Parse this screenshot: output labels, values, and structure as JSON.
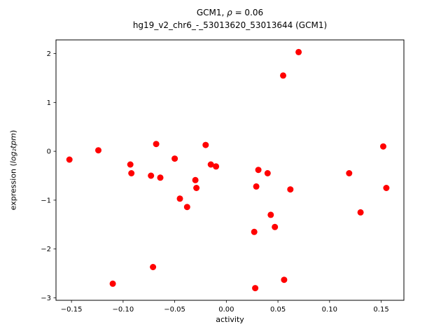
{
  "figure": {
    "title_line1_pre": "GCM1, ",
    "title_rho": "ρ",
    "title_line1_post": " = 0.06",
    "title_line2": "hg19_v2_chr6_-_53013620_53013644 (GCM1)",
    "xlabel": "activity",
    "ylabel_pre": "expression (",
    "ylabel_math": "log₂tpm",
    "ylabel_post": ")"
  },
  "chart_data": {
    "type": "scatter",
    "title": "GCM1, ρ = 0.06",
    "subtitle": "hg19_v2_chr6_-_53013620_53013644 (GCM1)",
    "xlabel": "activity",
    "ylabel": "expression (log2tpm)",
    "xlim": [
      -0.165,
      0.172
    ],
    "ylim": [
      -3.05,
      2.28
    ],
    "xticks": [
      -0.15,
      -0.1,
      -0.05,
      0.0,
      0.05,
      0.1,
      0.15
    ],
    "xtick_labels": [
      "−0.15",
      "−0.10",
      "−0.05",
      "0.00",
      "0.05",
      "0.10",
      "0.15"
    ],
    "yticks": [
      -3,
      -2,
      -1,
      0,
      1,
      2
    ],
    "ytick_labels": [
      "−3",
      "−2",
      "−1",
      "0",
      "1",
      "2"
    ],
    "grid": false,
    "legend": "none",
    "marker_color": "#ff0000",
    "marker_radius_px": 4.5,
    "points": [
      [
        -0.152,
        -0.17
      ],
      [
        -0.124,
        0.02
      ],
      [
        -0.11,
        -2.71
      ],
      [
        -0.093,
        -0.27
      ],
      [
        -0.092,
        -0.45
      ],
      [
        -0.073,
        -0.5
      ],
      [
        -0.071,
        -2.37
      ],
      [
        -0.068,
        0.15
      ],
      [
        -0.064,
        -0.54
      ],
      [
        -0.05,
        -0.15
      ],
      [
        -0.045,
        -0.97
      ],
      [
        -0.038,
        -1.14
      ],
      [
        -0.03,
        -0.59
      ],
      [
        -0.029,
        -0.75
      ],
      [
        -0.02,
        0.13
      ],
      [
        -0.015,
        -0.27
      ],
      [
        -0.01,
        -0.31
      ],
      [
        0.027,
        -1.65
      ],
      [
        0.028,
        -2.8
      ],
      [
        0.029,
        -0.72
      ],
      [
        0.031,
        -0.38
      ],
      [
        0.04,
        -0.45
      ],
      [
        0.043,
        -1.3
      ],
      [
        0.047,
        -1.55
      ],
      [
        0.055,
        1.55
      ],
      [
        0.056,
        -2.63
      ],
      [
        0.062,
        -0.78
      ],
      [
        0.07,
        2.03
      ],
      [
        0.119,
        -0.45
      ],
      [
        0.13,
        -1.25
      ],
      [
        0.152,
        0.1
      ],
      [
        0.155,
        -0.75
      ]
    ]
  }
}
